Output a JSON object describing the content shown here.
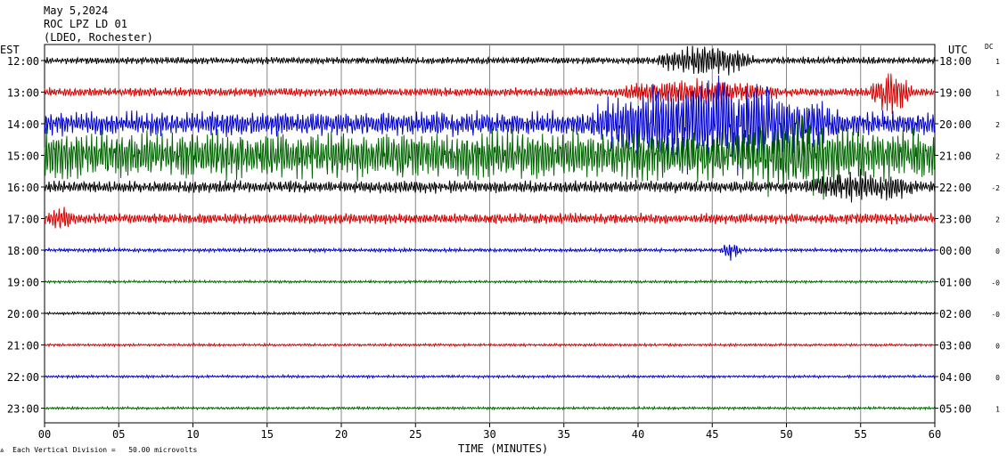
{
  "header": {
    "date": "May 5,2024",
    "station": "ROC LPZ LD 01",
    "network": "(LDEO, Rochester)"
  },
  "left_axis_label": "EST",
  "right_axis_label": "UTC",
  "dc_label": "DC",
  "footer": {
    "scale_note": "Each Vertical Division =   50.00 microvolts",
    "scale_icon": "scale-icon"
  },
  "chart_data": {
    "type": "line",
    "title": "",
    "xlabel": "TIME (MINUTES)",
    "xlim": [
      0,
      60
    ],
    "x_ticks": [
      "00",
      "05",
      "10",
      "15",
      "20",
      "25",
      "30",
      "35",
      "40",
      "45",
      "50",
      "55",
      "60"
    ],
    "grid": true,
    "trace_colors": [
      "#000000",
      "#d40000",
      "#0000c8",
      "#006400"
    ],
    "rows": [
      {
        "est": "12:00",
        "utc": "18:00",
        "dc": "1",
        "color": "#000000",
        "base": 4,
        "events": [
          {
            "start": 41,
            "end": 48,
            "amp": 16
          }
        ]
      },
      {
        "est": "13:00",
        "utc": "19:00",
        "dc": "1",
        "color": "#d40000",
        "base": 5,
        "events": [
          {
            "start": 38,
            "end": 50,
            "amp": 10
          },
          {
            "start": 55.5,
            "end": 58.5,
            "amp": 24
          }
        ]
      },
      {
        "est": "14:00",
        "utc": "20:00",
        "dc": "2",
        "color": "#0000c8",
        "base": 14,
        "events": [
          {
            "start": 36,
            "end": 54,
            "amp": 40
          }
        ]
      },
      {
        "est": "15:00",
        "utc": "21:00",
        "dc": "2",
        "color": "#006400",
        "base": 28,
        "events": [
          {
            "start": 47,
            "end": 55,
            "amp": 20
          }
        ]
      },
      {
        "est": "16:00",
        "utc": "22:00",
        "dc": "-2",
        "color": "#000000",
        "base": 7,
        "events": [
          {
            "start": 51,
            "end": 59,
            "amp": 12
          }
        ]
      },
      {
        "est": "17:00",
        "utc": "23:00",
        "dc": "2",
        "color": "#d40000",
        "base": 6,
        "events": [
          {
            "start": 0,
            "end": 2,
            "amp": 9
          }
        ]
      },
      {
        "est": "18:00",
        "utc": "00:00",
        "dc": "0",
        "color": "#0000c8",
        "base": 2,
        "events": [
          {
            "start": 45.5,
            "end": 47,
            "amp": 10
          }
        ]
      },
      {
        "est": "19:00",
        "utc": "01:00",
        "dc": "-0",
        "color": "#006400",
        "base": 1.5,
        "events": []
      },
      {
        "est": "20:00",
        "utc": "02:00",
        "dc": "-0",
        "color": "#000000",
        "base": 1.5,
        "events": []
      },
      {
        "est": "21:00",
        "utc": "03:00",
        "dc": "0",
        "color": "#d40000",
        "base": 1.5,
        "events": []
      },
      {
        "est": "22:00",
        "utc": "04:00",
        "dc": "0",
        "color": "#0000c8",
        "base": 1.5,
        "events": []
      },
      {
        "est": "23:00",
        "utc": "05:00",
        "dc": "1",
        "color": "#006400",
        "base": 1.5,
        "events": []
      }
    ]
  }
}
